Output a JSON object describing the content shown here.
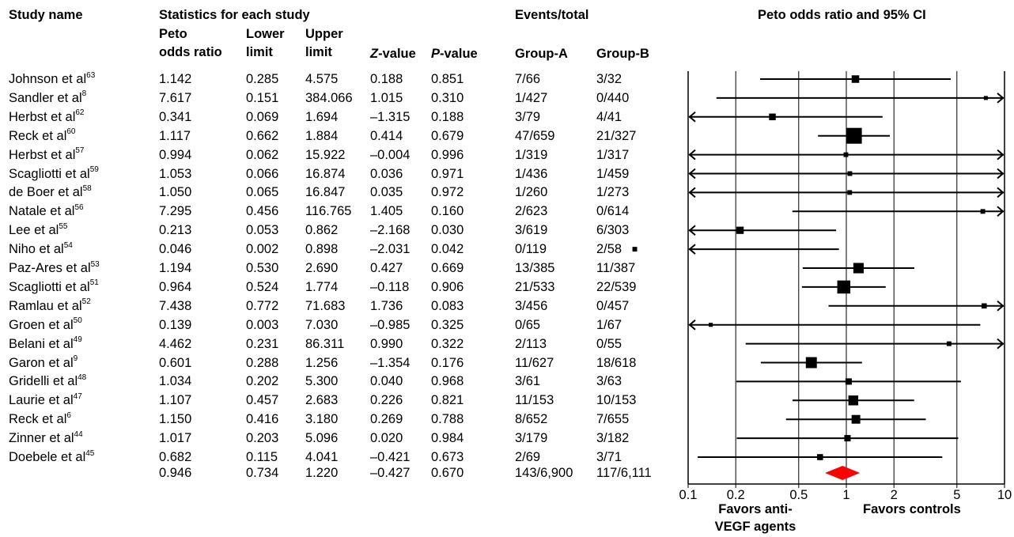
{
  "headers": {
    "study_name": "Study name",
    "stats_group": "Statistics for each study",
    "events_group": "Events/total",
    "plot_title": "Peto odds ratio and 95% CI",
    "peto_line1": "Peto",
    "peto_line2": "odds ratio",
    "lower_line1": "Lower",
    "lower_line2": "limit",
    "upper_line1": "Upper",
    "upper_line2": "limit",
    "z_italic": "Z",
    "z_rest": "-value",
    "p_italic": "P",
    "p_rest": "-value",
    "group_a": "Group-A",
    "group_b": "Group-B"
  },
  "studies": [
    {
      "name": "Johnson et al",
      "ref": "63",
      "or": "1.142",
      "lower": "0.285",
      "upper": "4.575",
      "z": "0.188",
      "p": "0.851",
      "ga": "7/66",
      "gb": "3/32"
    },
    {
      "name": "Sandler et al",
      "ref": "8",
      "or": "7.617",
      "lower": "0.151",
      "upper": "384.066",
      "z": "1.015",
      "p": "0.310",
      "ga": "1/427",
      "gb": "0/440"
    },
    {
      "name": "Herbst et al",
      "ref": "62",
      "or": "0.341",
      "lower": "0.069",
      "upper": "1.694",
      "z": "–1.315",
      "p": "0.188",
      "ga": "3/79",
      "gb": "4/41"
    },
    {
      "name": "Reck et al",
      "ref": "60",
      "or": "1.117",
      "lower": "0.662",
      "upper": "1.884",
      "z": "0.414",
      "p": "0.679",
      "ga": "47/659",
      "gb": "21/327"
    },
    {
      "name": "Herbst et al",
      "ref": "57",
      "or": "0.994",
      "lower": "0.062",
      "upper": "15.922",
      "z": "–0.004",
      "p": "0.996",
      "ga": "1/319",
      "gb": "1/317"
    },
    {
      "name": "Scagliotti et al",
      "ref": "59",
      "or": "1.053",
      "lower": "0.066",
      "upper": "16.874",
      "z": "0.036",
      "p": "0.971",
      "ga": "1/436",
      "gb": "1/459"
    },
    {
      "name": "de Boer et al",
      "ref": "58",
      "or": "1.050",
      "lower": "0.065",
      "upper": "16.847",
      "z": "0.035",
      "p": "0.972",
      "ga": "1/260",
      "gb": "1/273"
    },
    {
      "name": "Natale et al",
      "ref": "56",
      "or": "7.295",
      "lower": "0.456",
      "upper": "116.765",
      "z": "1.405",
      "p": "0.160",
      "ga": "2/623",
      "gb": "0/614"
    },
    {
      "name": "Lee et al",
      "ref": "55",
      "or": "0.213",
      "lower": "0.053",
      "upper": "0.862",
      "z": "–2.168",
      "p": "0.030",
      "ga": "3/619",
      "gb": "6/303"
    },
    {
      "name": "Niho et al",
      "ref": "54",
      "or": "0.046",
      "lower": "0.002",
      "upper": "0.898",
      "z": "–2.031",
      "p": "0.042",
      "ga": "0/119",
      "gb": "2/58"
    },
    {
      "name": "Paz-Ares et al",
      "ref": "53",
      "or": "1.194",
      "lower": "0.530",
      "upper": "2.690",
      "z": "0.427",
      "p": "0.669",
      "ga": "13/385",
      "gb": "11/387"
    },
    {
      "name": "Scagliotti et al",
      "ref": "51",
      "or": "0.964",
      "lower": "0.524",
      "upper": "1.774",
      "z": "–0.118",
      "p": "0.906",
      "ga": "21/533",
      "gb": "22/539"
    },
    {
      "name": "Ramlau et al",
      "ref": "52",
      "or": "7.438",
      "lower": "0.772",
      "upper": "71.683",
      "z": "1.736",
      "p": "0.083",
      "ga": "3/456",
      "gb": "0/457"
    },
    {
      "name": "Groen et al",
      "ref": "50",
      "or": "0.139",
      "lower": "0.003",
      "upper": "7.030",
      "z": "–0.985",
      "p": "0.325",
      "ga": "0/65",
      "gb": "1/67"
    },
    {
      "name": "Belani et al",
      "ref": "49",
      "or": "4.462",
      "lower": "0.231",
      "upper": "86.311",
      "z": "0.990",
      "p": "0.322",
      "ga": "2/113",
      "gb": "0/55"
    },
    {
      "name": "Garon et al",
      "ref": "9",
      "or": "0.601",
      "lower": "0.288",
      "upper": "1.256",
      "z": "–1.354",
      "p": "0.176",
      "ga": "11/627",
      "gb": "18/618"
    },
    {
      "name": "Gridelli et al",
      "ref": "48",
      "or": "1.034",
      "lower": "0.202",
      "upper": "5.300",
      "z": "0.040",
      "p": "0.968",
      "ga": "3/61",
      "gb": "3/63"
    },
    {
      "name": "Laurie et al",
      "ref": "47",
      "or": "1.107",
      "lower": "0.457",
      "upper": "2.683",
      "z": "0.226",
      "p": "0.821",
      "ga": "11/153",
      "gb": "10/153"
    },
    {
      "name": "Reck et al",
      "ref": "6",
      "or": "1.150",
      "lower": "0.416",
      "upper": "3.180",
      "z": "0.269",
      "p": "0.788",
      "ga": "8/652",
      "gb": "7/655"
    },
    {
      "name": "Zinner et al",
      "ref": "44",
      "or": "1.017",
      "lower": "0.203",
      "upper": "5.096",
      "z": "0.020",
      "p": "0.984",
      "ga": "3/179",
      "gb": "3/182"
    },
    {
      "name": "Doebele et al",
      "ref": "45",
      "or": "0.682",
      "lower": "0.115",
      "upper": "4.041",
      "z": "–0.421",
      "p": "0.673",
      "ga": "2/69",
      "gb": "3/71"
    }
  ],
  "pooled": {
    "or": "0.946",
    "lower": "0.734",
    "upper": "1.220",
    "z": "–0.427",
    "p": "0.670",
    "ga": "143/6,900",
    "gb": "117/6,111"
  },
  "axis": {
    "ticks": [
      "0.1",
      "0.2",
      "0.5",
      "1",
      "2",
      "5",
      "10"
    ],
    "favors_left_line1": "Favors anti-",
    "favors_left_line2": "VEGF agents",
    "favors_right": "Favors controls"
  },
  "colors": {
    "marker": "#000000",
    "pooled": "#ff0000"
  },
  "chart_data": {
    "type": "forest",
    "title": "Peto odds ratio and 95% CI",
    "scale": "log",
    "xlim": [
      0.1,
      10
    ],
    "grid": "vertical lines at ticks",
    "categories": [
      "Johnson et al",
      "Sandler et al",
      "Herbst et al",
      "Reck et al",
      "Herbst et al",
      "Scagliotti et al",
      "de Boer et al",
      "Natale et al",
      "Lee et al",
      "Niho et al",
      "Paz-Ares et al",
      "Scagliotti et al",
      "Ramlau et al",
      "Groen et al",
      "Belani et al",
      "Garon et al",
      "Gridelli et al",
      "Laurie et al",
      "Reck et al",
      "Zinner et al",
      "Doebele et al"
    ],
    "values": [
      1.142,
      7.617,
      0.341,
      1.117,
      0.994,
      1.053,
      1.05,
      7.295,
      0.213,
      0.046,
      1.194,
      0.964,
      7.438,
      0.139,
      4.462,
      0.601,
      1.034,
      1.107,
      1.15,
      1.017,
      0.682
    ],
    "lower": [
      0.285,
      0.151,
      0.069,
      0.662,
      0.062,
      0.066,
      0.065,
      0.456,
      0.053,
      0.002,
      0.53,
      0.524,
      0.772,
      0.003,
      0.231,
      0.288,
      0.202,
      0.457,
      0.416,
      0.203,
      0.115
    ],
    "upper": [
      4.575,
      384.066,
      1.694,
      1.884,
      15.922,
      16.874,
      16.847,
      116.765,
      0.862,
      0.898,
      2.69,
      1.774,
      71.683,
      7.03,
      86.311,
      1.256,
      5.3,
      2.683,
      3.18,
      5.096,
      4.041
    ],
    "weights": [
      10,
      1,
      7,
      68,
      2,
      2,
      2,
      2,
      9,
      2,
      24,
      43,
      3,
      1,
      2,
      28,
      6,
      21,
      15,
      6,
      5
    ],
    "pooled": {
      "value": 0.946,
      "lower": 0.734,
      "upper": 1.22
    }
  }
}
